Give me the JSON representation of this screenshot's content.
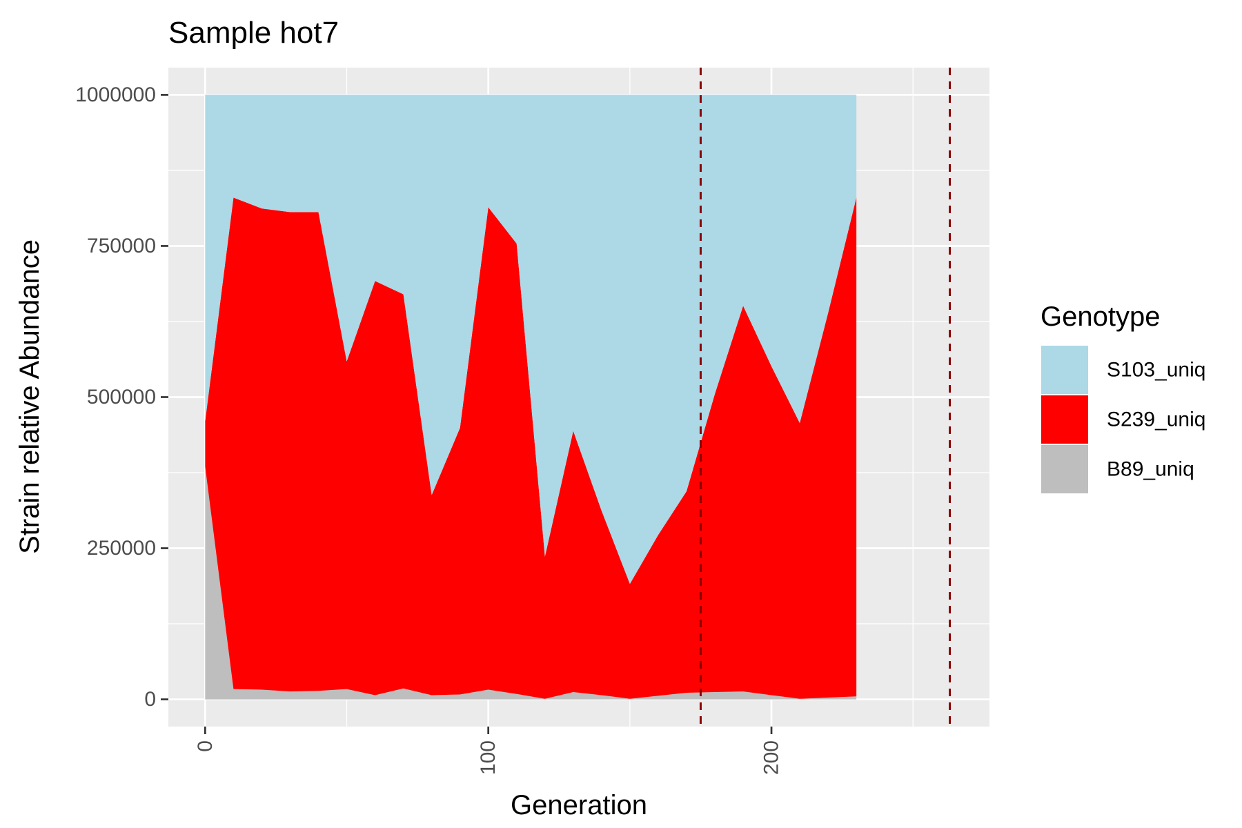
{
  "chart_data": {
    "type": "area",
    "stacked": true,
    "title": "Sample hot7",
    "xlabel": "Generation",
    "ylabel": "Strain relative Abundance",
    "xlim": [
      -13,
      277
    ],
    "ylim": [
      -45000,
      1045000
    ],
    "x_ticks": [
      0,
      100,
      200
    ],
    "x_tick_labels": [
      "0",
      "100",
      "200"
    ],
    "y_ticks": [
      0,
      250000,
      500000,
      750000,
      1000000
    ],
    "y_tick_labels": [
      "0",
      "250000",
      "500000",
      "750000",
      "1000000"
    ],
    "grid": true,
    "x": [
      0,
      10,
      20,
      30,
      40,
      50,
      60,
      70,
      80,
      90,
      100,
      110,
      120,
      130,
      140,
      150,
      160,
      170,
      180,
      190,
      200,
      210,
      220,
      230
    ],
    "series": [
      {
        "name": "B89_uniq",
        "color": "#bebebe",
        "values": [
          385000,
          17000,
          16000,
          13000,
          14000,
          17000,
          7000,
          18000,
          7000,
          8000,
          16000,
          9000,
          1000,
          12000,
          7000,
          1000,
          6000,
          11000,
          12000,
          13000,
          7000,
          1000,
          3000,
          5000
        ]
      },
      {
        "name": "S239_uniq",
        "color": "#ff0000",
        "values": [
          75000,
          813000,
          796000,
          793000,
          792000,
          542000,
          685000,
          652000,
          331000,
          441000,
          798000,
          745000,
          235000,
          432000,
          305000,
          190000,
          266000,
          333000,
          493000,
          638000,
          544000,
          456000,
          636000,
          825000
        ]
      },
      {
        "name": "S103_uniq",
        "color": "#add8e6",
        "values": [
          540000,
          170000,
          188000,
          194000,
          194000,
          441000,
          308000,
          330000,
          662000,
          551000,
          186000,
          246000,
          764000,
          556000,
          688000,
          809000,
          728000,
          656000,
          495000,
          349000,
          449000,
          543000,
          361000,
          170000
        ]
      }
    ],
    "vlines": [
      {
        "x": 175,
        "color": "#8b0000",
        "style": "dashed"
      },
      {
        "x": 263,
        "color": "#8b0000",
        "style": "dashed"
      }
    ],
    "legend": {
      "title": "Genotype",
      "position": "right",
      "entries": [
        {
          "label": "S103_uniq",
          "color": "#add8e6"
        },
        {
          "label": "S239_uniq",
          "color": "#ff0000"
        },
        {
          "label": "B89_uniq",
          "color": "#bebebe"
        }
      ]
    }
  }
}
